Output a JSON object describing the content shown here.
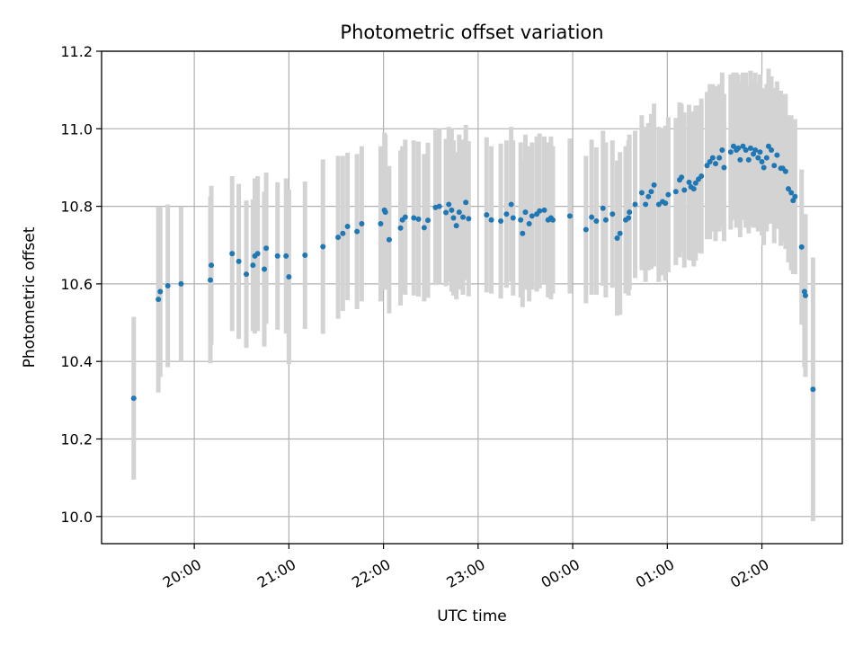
{
  "chart_data": {
    "type": "scatter",
    "title": "Photometric offset variation",
    "xlabel": "UTC time",
    "ylabel": "Photometric offset",
    "ylim": [
      9.93,
      11.2
    ],
    "xlim_hours": [
      19.02,
      26.85
    ],
    "grid": true,
    "point_color": "#1f77b4",
    "errorbar_color": "#d3d3d3",
    "x_ticks": [
      {
        "t": 20,
        "label": "20:00"
      },
      {
        "t": 21,
        "label": "21:00"
      },
      {
        "t": 22,
        "label": "22:00"
      },
      {
        "t": 23,
        "label": "23:00"
      },
      {
        "t": 24,
        "label": "00:00"
      },
      {
        "t": 25,
        "label": "01:00"
      },
      {
        "t": 26,
        "label": "02:00"
      }
    ],
    "y_ticks": [
      {
        "v": 10.0,
        "label": "10.0"
      },
      {
        "v": 10.2,
        "label": "10.2"
      },
      {
        "v": 10.4,
        "label": "10.4"
      },
      {
        "v": 10.6,
        "label": "10.6"
      },
      {
        "v": 10.8,
        "label": "10.8"
      },
      {
        "v": 11.0,
        "label": "11.0"
      },
      {
        "v": 11.2,
        "label": "11.2"
      }
    ],
    "points": [
      [
        19.36,
        10.305,
        0.21
      ],
      [
        19.62,
        10.56,
        0.24
      ],
      [
        19.64,
        10.58,
        0.22
      ],
      [
        19.72,
        10.595,
        0.21
      ],
      [
        19.86,
        10.6,
        0.2
      ],
      [
        20.17,
        10.61,
        0.215
      ],
      [
        20.18,
        10.648,
        0.205
      ],
      [
        20.4,
        10.678,
        0.2
      ],
      [
        20.47,
        10.658,
        0.2
      ],
      [
        20.55,
        10.625,
        0.19
      ],
      [
        20.62,
        10.648,
        0.17
      ],
      [
        20.64,
        10.672,
        0.2
      ],
      [
        20.67,
        10.678,
        0.2
      ],
      [
        20.74,
        10.638,
        0.2
      ],
      [
        20.76,
        10.692,
        0.195
      ],
      [
        20.88,
        10.672,
        0.19
      ],
      [
        20.97,
        10.672,
        0.2
      ],
      [
        21.0,
        10.618,
        0.225
      ],
      [
        21.17,
        10.674,
        0.19
      ],
      [
        21.36,
        10.696,
        0.225
      ],
      [
        21.52,
        10.72,
        0.21
      ],
      [
        21.57,
        10.73,
        0.2
      ],
      [
        21.62,
        10.748,
        0.19
      ],
      [
        21.72,
        10.735,
        0.2
      ],
      [
        21.77,
        10.755,
        0.2
      ],
      [
        21.97,
        10.755,
        0.2
      ],
      [
        22.01,
        10.79,
        0.2
      ],
      [
        22.02,
        10.785,
        0.2
      ],
      [
        22.06,
        10.714,
        0.19
      ],
      [
        22.18,
        10.744,
        0.2
      ],
      [
        22.2,
        10.765,
        0.19
      ],
      [
        22.23,
        10.772,
        0.2
      ],
      [
        22.32,
        10.77,
        0.2
      ],
      [
        22.37,
        10.767,
        0.2
      ],
      [
        22.43,
        10.745,
        0.19
      ],
      [
        22.47,
        10.764,
        0.2
      ],
      [
        22.55,
        10.797,
        0.2
      ],
      [
        22.59,
        10.8,
        0.2
      ],
      [
        22.66,
        10.784,
        0.19
      ],
      [
        22.69,
        10.805,
        0.2
      ],
      [
        22.72,
        10.79,
        0.21
      ],
      [
        22.74,
        10.77,
        0.2
      ],
      [
        22.77,
        10.75,
        0.19
      ],
      [
        22.8,
        10.785,
        0.2
      ],
      [
        22.84,
        10.772,
        0.2
      ],
      [
        22.87,
        10.81,
        0.2
      ],
      [
        22.9,
        10.768,
        0.2
      ],
      [
        23.09,
        10.778,
        0.2
      ],
      [
        23.14,
        10.765,
        0.19
      ],
      [
        23.24,
        10.762,
        0.2
      ],
      [
        23.3,
        10.78,
        0.19
      ],
      [
        23.35,
        10.805,
        0.2
      ],
      [
        23.37,
        10.77,
        0.2
      ],
      [
        23.45,
        10.765,
        0.2
      ],
      [
        23.47,
        10.73,
        0.19
      ],
      [
        23.5,
        10.785,
        0.2
      ],
      [
        23.54,
        10.755,
        0.2
      ],
      [
        23.57,
        10.775,
        0.19
      ],
      [
        23.62,
        10.78,
        0.2
      ],
      [
        23.65,
        10.788,
        0.2
      ],
      [
        23.7,
        10.79,
        0.19
      ],
      [
        23.74,
        10.765,
        0.2
      ],
      [
        23.77,
        10.77,
        0.21
      ],
      [
        23.79,
        10.765,
        0.19
      ],
      [
        23.97,
        10.775,
        0.2
      ],
      [
        24.14,
        10.74,
        0.19
      ],
      [
        24.2,
        10.772,
        0.2
      ],
      [
        24.25,
        10.762,
        0.19
      ],
      [
        24.32,
        10.795,
        0.2
      ],
      [
        24.35,
        10.765,
        0.2
      ],
      [
        24.42,
        10.78,
        0.19
      ],
      [
        24.47,
        10.718,
        0.2
      ],
      [
        24.5,
        10.73,
        0.21
      ],
      [
        24.56,
        10.765,
        0.19
      ],
      [
        24.59,
        10.77,
        0.2
      ],
      [
        24.6,
        10.785,
        0.2
      ],
      [
        24.66,
        10.805,
        0.19
      ],
      [
        24.73,
        10.835,
        0.2
      ],
      [
        24.77,
        10.805,
        0.2
      ],
      [
        24.8,
        10.825,
        0.19
      ],
      [
        24.83,
        10.838,
        0.2
      ],
      [
        24.86,
        10.855,
        0.21
      ],
      [
        24.91,
        10.805,
        0.2
      ],
      [
        24.95,
        10.812,
        0.19
      ],
      [
        24.98,
        10.808,
        0.2
      ],
      [
        25.01,
        10.83,
        0.2
      ],
      [
        25.09,
        10.838,
        0.19
      ],
      [
        25.13,
        10.868,
        0.2
      ],
      [
        25.15,
        10.875,
        0.19
      ],
      [
        25.18,
        10.842,
        0.2
      ],
      [
        25.23,
        10.862,
        0.2
      ],
      [
        25.25,
        10.85,
        0.19
      ],
      [
        25.28,
        10.845,
        0.2
      ],
      [
        25.3,
        10.86,
        0.2
      ],
      [
        25.33,
        10.87,
        0.19
      ],
      [
        25.36,
        10.878,
        0.2
      ],
      [
        25.42,
        10.905,
        0.19
      ],
      [
        25.45,
        10.915,
        0.2
      ],
      [
        25.48,
        10.925,
        0.19
      ],
      [
        25.51,
        10.91,
        0.2
      ],
      [
        25.55,
        10.925,
        0.19
      ],
      [
        25.58,
        10.945,
        0.2
      ],
      [
        25.6,
        10.9,
        0.19
      ],
      [
        25.67,
        10.94,
        0.2
      ],
      [
        25.7,
        10.955,
        0.19
      ],
      [
        25.73,
        10.945,
        0.2
      ],
      [
        25.75,
        10.95,
        0.19
      ],
      [
        25.77,
        10.92,
        0.2
      ],
      [
        25.8,
        10.955,
        0.19
      ],
      [
        25.83,
        10.945,
        0.2
      ],
      [
        25.86,
        10.92,
        0.19
      ],
      [
        25.88,
        10.95,
        0.2
      ],
      [
        25.91,
        10.935,
        0.19
      ],
      [
        25.93,
        10.945,
        0.2
      ],
      [
        25.96,
        10.925,
        0.19
      ],
      [
        25.98,
        10.94,
        0.2
      ],
      [
        26.0,
        10.915,
        0.19
      ],
      [
        26.02,
        10.9,
        0.2
      ],
      [
        26.05,
        10.925,
        0.19
      ],
      [
        26.07,
        10.955,
        0.2
      ],
      [
        26.1,
        10.945,
        0.19
      ],
      [
        26.13,
        10.905,
        0.2
      ],
      [
        26.16,
        10.932,
        0.19
      ],
      [
        26.2,
        10.898,
        0.2
      ],
      [
        26.22,
        10.898,
        0.19
      ],
      [
        26.25,
        10.89,
        0.2
      ],
      [
        26.28,
        10.845,
        0.19
      ],
      [
        26.31,
        10.835,
        0.2
      ],
      [
        26.33,
        10.815,
        0.19
      ],
      [
        26.35,
        10.825,
        0.2
      ],
      [
        26.42,
        10.695,
        0.2
      ],
      [
        26.45,
        10.58,
        0.195
      ],
      [
        26.46,
        10.57,
        0.21
      ],
      [
        26.54,
        10.328,
        0.34
      ]
    ]
  }
}
